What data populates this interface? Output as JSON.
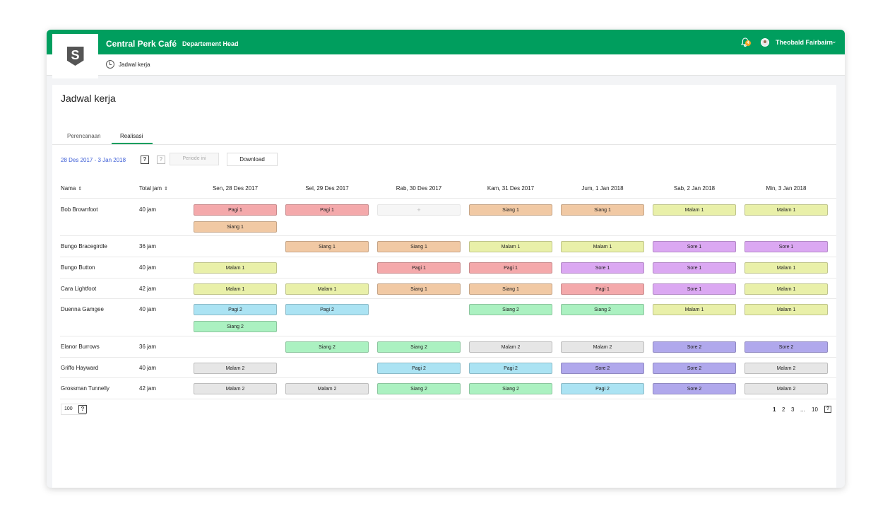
{
  "app": {
    "title": "Central Perk Café",
    "role": "Departement Head",
    "logo_letter": "S"
  },
  "header": {
    "notification_count": "4",
    "user_name": "Theobald Fairbairn"
  },
  "breadcrumb": {
    "label": "Jadwal kerja"
  },
  "page": {
    "title": "Jadwal kerja"
  },
  "tabs": [
    {
      "label": "Perencanaan"
    },
    {
      "label": "Realisasi"
    }
  ],
  "toolbar": {
    "date_range": "28 Des 2017 - 3 Jan 2018",
    "help": "?",
    "period_label": "Periode ini",
    "download_label": "Download"
  },
  "table": {
    "col_name": "Nama",
    "col_total": "Total jam",
    "days": [
      "Sen, 28 Des 2017",
      "Sel, 29 Des 2017",
      "Rab, 30 Des 2017",
      "Kam, 31 Des 2017",
      "Jum, 1 Jan 2018",
      "Sab, 2 Jan 2018",
      "Min, 3 Jan 2018"
    ],
    "rows": [
      {
        "name": "Bob Brownfoot",
        "total": "40 jam",
        "shifts": [
          [
            "Pagi 1",
            "Siang 1"
          ],
          [
            "Pagi 1"
          ],
          [
            "+"
          ],
          [
            "Siang 1"
          ],
          [
            "Siang 1"
          ],
          [
            "Malam 1"
          ],
          [
            "Malam 1"
          ]
        ]
      },
      {
        "name": "Bungo Bracegirdle",
        "total": "36 jam",
        "shifts": [
          [],
          [
            "Siang 1"
          ],
          [
            "Siang 1"
          ],
          [
            "Malam 1"
          ],
          [
            "Malam 1"
          ],
          [
            "Sore 1"
          ],
          [
            "Sore 1"
          ]
        ]
      },
      {
        "name": "Bungo Button",
        "total": "40 jam",
        "shifts": [
          [
            "Malam 1"
          ],
          [],
          [
            "Pagi 1"
          ],
          [
            "Pagi 1"
          ],
          [
            "Sore 1"
          ],
          [
            "Sore 1"
          ],
          [
            "Malam 1"
          ]
        ]
      },
      {
        "name": "Cara Lightfoot",
        "total": "42 jam",
        "shifts": [
          [
            "Malam 1"
          ],
          [
            "Malam 1"
          ],
          [
            "Siang 1"
          ],
          [
            "Siang 1"
          ],
          [
            "Pagi 1"
          ],
          [
            "Sore 1"
          ],
          [
            "Malam 1"
          ]
        ]
      },
      {
        "name": "Duenna Gamgee",
        "total": "40 jam",
        "shifts": [
          [
            "Pagi 2",
            "Siang 2"
          ],
          [
            "Pagi 2"
          ],
          [],
          [
            "Siang 2"
          ],
          [
            "Siang 2"
          ],
          [
            "Malam 1"
          ],
          [
            "Malam 1"
          ]
        ]
      },
      {
        "name": "Elanor Burrows",
        "total": "36 jam",
        "shifts": [
          [],
          [
            "Siang 2"
          ],
          [
            "Siang 2"
          ],
          [
            "Malam 2"
          ],
          [
            "Malam 2"
          ],
          [
            "Sore 2"
          ],
          [
            "Sore 2"
          ]
        ]
      },
      {
        "name": "Griffo Hayward",
        "total": "40 jam",
        "shifts": [
          [
            "Malam 2"
          ],
          [],
          [
            "Pagi 2"
          ],
          [
            "Pagi 2"
          ],
          [
            "Sore 2"
          ],
          [
            "Sore 2"
          ],
          [
            "Malam 2"
          ]
        ]
      },
      {
        "name": "Grossman Tunnelly",
        "total": "42 jam",
        "shifts": [
          [
            "Malam 2"
          ],
          [
            "Malam 2"
          ],
          [
            "Siang 2"
          ],
          [
            "Siang 2"
          ],
          [
            "Pagi 2"
          ],
          [
            "Sore 2"
          ],
          [
            "Malam 2"
          ]
        ]
      }
    ]
  },
  "shift_colors": {
    "Pagi 1": "#f4a9ab",
    "Siang 1": "#f1c9a4",
    "Malam 1": "#e9f0a9",
    "Sore 1": "#dba8f2",
    "Pagi 2": "#abe3f3",
    "Siang 2": "#abf1c1",
    "Malam 2": "#e6e6e6",
    "Sore 2": "#b0a8ec"
  },
  "footer": {
    "per_page": "100",
    "pages": [
      "1",
      "2",
      "3",
      "...",
      "10"
    ]
  },
  "colors": {
    "brand": "#009e5e",
    "link": "#3b5cd6"
  }
}
